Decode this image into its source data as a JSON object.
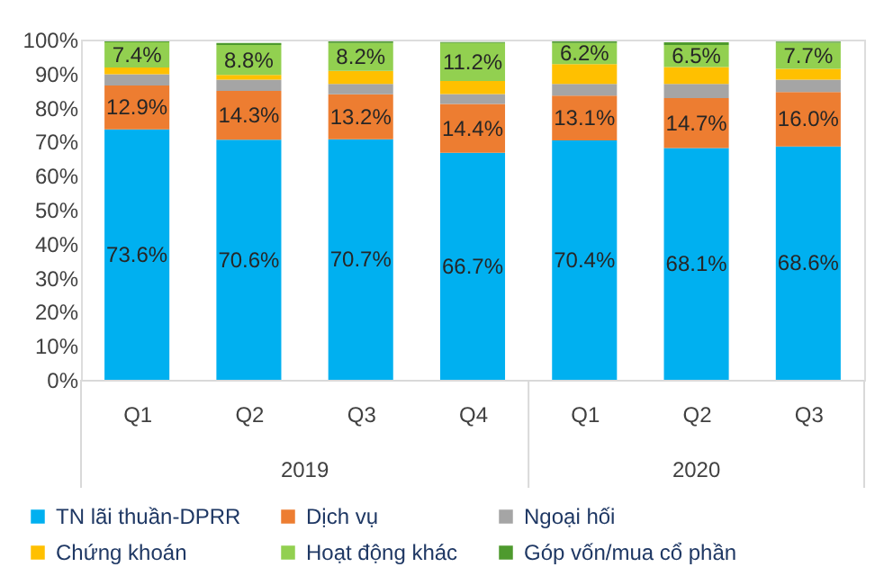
{
  "chart_data": {
    "type": "bar",
    "stacked": true,
    "categories": [
      "Q1",
      "Q2",
      "Q3",
      "Q4",
      "Q1",
      "Q2",
      "Q3"
    ],
    "annotations": [
      "2019",
      "2020"
    ],
    "series": [
      {
        "name": "TN lãi thuần-DPRR",
        "color": "#00b0f0",
        "values": [
          73.6,
          70.6,
          70.7,
          66.7,
          70.4,
          68.1,
          68.6
        ],
        "value_labels": [
          "73.6%",
          "70.6%",
          "70.7%",
          "66.7%",
          "70.4%",
          "68.1%",
          "68.6%"
        ]
      },
      {
        "name": "Dịch vụ",
        "color": "#ed7d31",
        "values": [
          12.9,
          14.3,
          13.2,
          14.4,
          13.1,
          14.7,
          16.0
        ],
        "value_labels": [
          "12.9%",
          "14.3%",
          "13.2%",
          "14.4%",
          "13.1%",
          "14.7%",
          "16.0%"
        ]
      },
      {
        "name": "Ngoại hối",
        "color": "#a5a5a5",
        "values": [
          3.3,
          3.3,
          3.1,
          2.9,
          3.5,
          4.2,
          3.6
        ]
      },
      {
        "name": "Chứng khoán",
        "color": "#ffc000",
        "values": [
          2.0,
          1.4,
          3.8,
          3.8,
          5.8,
          4.9,
          3.2
        ]
      },
      {
        "name": "Hoạt động khác",
        "color": "#92d050",
        "values": [
          7.4,
          8.8,
          8.2,
          11.2,
          6.2,
          6.5,
          7.7
        ],
        "value_labels": [
          "7.4%",
          "8.8%",
          "8.2%",
          "11.2%",
          "6.2%",
          "6.5%",
          "7.7%"
        ]
      },
      {
        "name": "Góp vốn/mua cổ phần",
        "color": "#4e9a2e",
        "values": [
          0.3,
          0.6,
          0.5,
          0.3,
          0.5,
          0.8,
          0.3
        ]
      }
    ],
    "ylim": [
      0,
      100
    ],
    "yticks": [
      {
        "value": 0,
        "label": "0%"
      },
      {
        "value": 10,
        "label": "10%"
      },
      {
        "value": 20,
        "label": "20%"
      },
      {
        "value": 30,
        "label": "30%"
      },
      {
        "value": 40,
        "label": "40%"
      },
      {
        "value": 50,
        "label": "50%"
      },
      {
        "value": 60,
        "label": "60%"
      },
      {
        "value": 70,
        "label": "70%"
      },
      {
        "value": 80,
        "label": "80%"
      },
      {
        "value": 90,
        "label": "90%"
      },
      {
        "value": 100,
        "label": "100%"
      }
    ],
    "grid": false,
    "legend": "bottom"
  }
}
